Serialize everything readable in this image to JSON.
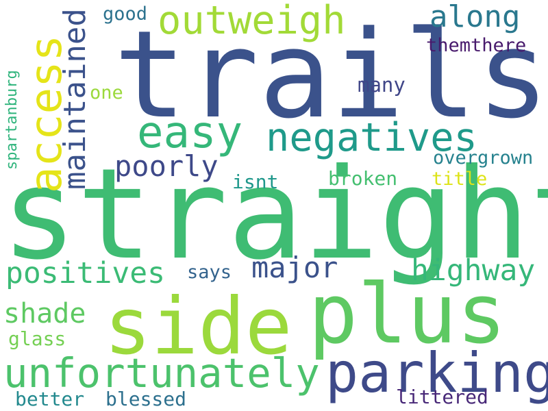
{
  "words": {
    "trails": "trails",
    "straight": "straight",
    "side": "side",
    "plus": "plus",
    "parking": "parking",
    "unfortunately": "unfortunately",
    "access": "access",
    "easy": "easy",
    "negatives": "negatives",
    "outweigh": "outweigh",
    "along": "along",
    "maintained": "maintained",
    "poorly": "poorly",
    "positives": "positives",
    "major": "major",
    "highway": "highway",
    "shade": "shade",
    "good": "good",
    "themthere": "themthere",
    "many": "many",
    "one": "one",
    "spartanburg": "spartanburg",
    "overgrown": "overgrown",
    "isnt": "isnt",
    "broken": "broken",
    "title": "title",
    "says": "says",
    "glass": "glass",
    "better": "better",
    "blessed": "blessed",
    "littered": "littered"
  },
  "colors": {
    "trails": "#3b528b",
    "straight": "#3fbc73",
    "side": "#9bd93c",
    "plus": "#5ec962",
    "parking": "#3e4a89",
    "unfortunately": "#4cc26c",
    "access": "#e5e419",
    "easy": "#35b779",
    "negatives": "#1f9a8a",
    "outweigh": "#a2da37",
    "along": "#2a788e",
    "maintained": "#3b528b",
    "poorly": "#3e4989",
    "positives": "#3bbb75",
    "major": "#3b528b",
    "highway": "#35b779",
    "shade": "#5ec962",
    "good": "#2c728e",
    "themthere": "#481a6c",
    "many": "#404688",
    "one": "#9bd93c",
    "spartanburg": "#2fb47c",
    "overgrown": "#26828e",
    "isnt": "#1f988b",
    "broken": "#44bf70",
    "title": "#dde318",
    "says": "#33638d",
    "glass": "#75d054",
    "better": "#23898e",
    "blessed": "#2d708e",
    "littered": "#482878"
  }
}
